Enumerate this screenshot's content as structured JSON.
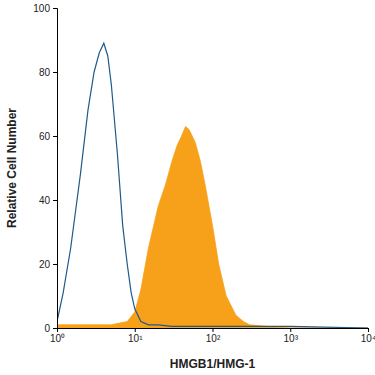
{
  "chart_data": {
    "type": "line",
    "log": "x",
    "grid": false,
    "x_label": "HMGB1/HMG-1",
    "y_label": "Relative Cell Number",
    "xlim": [
      1,
      10000
    ],
    "xticks": [
      {
        "value": 1,
        "label": "10⁰"
      },
      {
        "value": 10,
        "label": "10¹"
      },
      {
        "value": 100,
        "label": "10²"
      },
      {
        "value": 1000,
        "label": "10³"
      },
      {
        "value": 10000,
        "label": "10⁴"
      }
    ],
    "ylim": [
      0,
      100
    ],
    "yticks": [
      0,
      20,
      40,
      60,
      80,
      100
    ],
    "series": [
      {
        "type": "area",
        "color": "#f7a11a",
        "x": [
          1,
          5,
          8,
          10,
          12,
          15,
          20,
          25,
          30,
          35,
          40,
          45,
          50,
          60,
          70,
          80,
          100,
          120,
          150,
          200,
          250,
          300,
          500,
          1000,
          10000
        ],
        "values": [
          1,
          1,
          2,
          5,
          12,
          25,
          38,
          45,
          52,
          57,
          60,
          63,
          62,
          58,
          52,
          45,
          32,
          20,
          10,
          4,
          2,
          1,
          0.5,
          0,
          0
        ]
      },
      {
        "type": "line",
        "color": "#1f5a8a",
        "x": [
          1,
          1.2,
          1.5,
          2,
          2.5,
          3,
          3.5,
          4,
          4.5,
          5,
          6,
          7,
          8,
          9,
          10,
          12,
          15,
          20,
          30,
          100,
          1000,
          10000
        ],
        "values": [
          2,
          11,
          25,
          48,
          68,
          80,
          86,
          89,
          85,
          76,
          54,
          32,
          20,
          11,
          6,
          2,
          1,
          1,
          0.5,
          0.5,
          0.5,
          0
        ]
      }
    ]
  }
}
